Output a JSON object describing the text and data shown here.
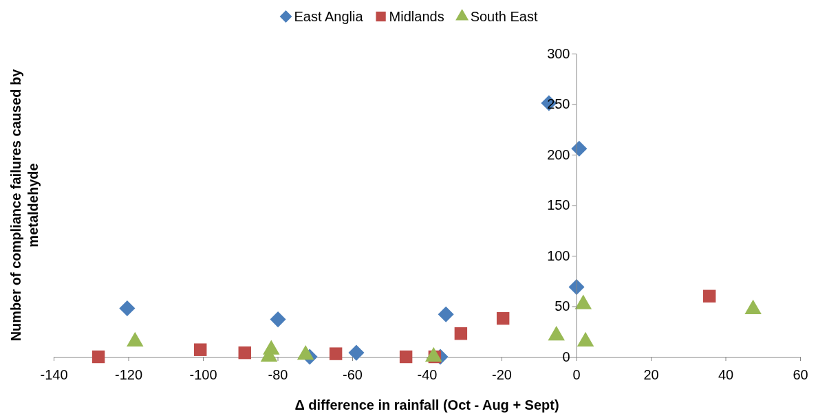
{
  "chart_data": {
    "type": "scatter",
    "xlabel": "Δ difference in rainfall (Oct - Aug + Sept)",
    "ylabel": "Number of compliance failures caused by metaldehyde",
    "xlim": [
      -140,
      60
    ],
    "xticks": [
      -140,
      -120,
      -100,
      -80,
      -60,
      -40,
      -20,
      0,
      20,
      40,
      60
    ],
    "ylim": [
      0,
      300
    ],
    "yticks": [
      0,
      50,
      100,
      150,
      200,
      250,
      300
    ],
    "grid": false,
    "legend": "top",
    "series": [
      {
        "name": "East Anglia",
        "color": "#4a7ebb",
        "marker": "diamond",
        "x": [
          -120.3,
          -79.9,
          -71.4,
          -58.9,
          -34.9,
          -36.4,
          -7.3,
          0.8,
          0.1
        ],
        "values": [
          48,
          37,
          0,
          4,
          42,
          0,
          251,
          206,
          69
        ]
      },
      {
        "name": "Midlands",
        "color": "#be4b48",
        "marker": "square",
        "x": [
          -128,
          -100.7,
          -88.8,
          -64.4,
          -45.6,
          -37.9,
          -30.9,
          -19.6,
          35.7
        ],
        "values": [
          0,
          7,
          4,
          3,
          0,
          0,
          23,
          38,
          60
        ]
      },
      {
        "name": "South East",
        "color": "#98b954",
        "marker": "triangle",
        "x": [
          -118.2,
          -81.7,
          -82.3,
          -72.5,
          -38.2,
          -5.3,
          1.9,
          2.5,
          47.4
        ],
        "values": [
          15,
          7,
          0,
          2,
          0,
          21,
          52,
          15,
          47
        ]
      }
    ]
  }
}
